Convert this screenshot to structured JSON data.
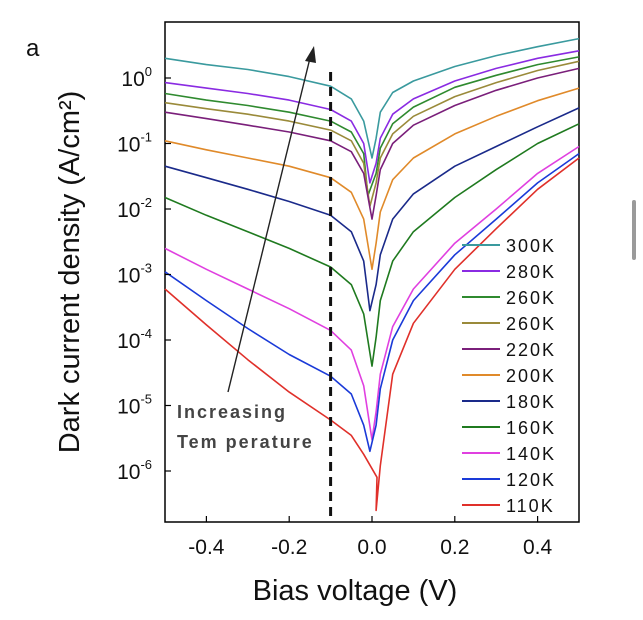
{
  "panel_label": "a",
  "chart_data": {
    "type": "line",
    "xlabel": "Bias voltage (V)",
    "ylabel": "Dark current density (A/cm²)",
    "xlim": [
      -0.5,
      0.5
    ],
    "x_ticks": [
      -0.4,
      -0.2,
      0.0,
      0.2,
      0.4
    ],
    "x_tick_labels": [
      "-0.4",
      "-0.2",
      "0.0",
      "0.2",
      "0.4"
    ],
    "yscale": "log",
    "ylim": [
      1e-07,
      10
    ],
    "y_tick_exponents": [
      0,
      -1,
      -2,
      -3,
      -4,
      -5,
      -6
    ],
    "y_tick_base": "10",
    "x": [
      -0.5,
      -0.4,
      -0.3,
      -0.2,
      -0.1,
      -0.05,
      -0.02,
      0.0,
      0.01,
      0.02,
      0.05,
      0.1,
      0.2,
      0.3,
      0.4,
      0.5
    ],
    "series": [
      {
        "name": "300K",
        "color": "#3a9a9e",
        "min_y": 0.0,
        "values": [
          2.0,
          1.6,
          1.35,
          1.05,
          0.75,
          0.48,
          0.22,
          0.06,
          0.12,
          0.3,
          0.6,
          0.9,
          1.5,
          2.2,
          3.0,
          4.0
        ]
      },
      {
        "name": "280K",
        "color": "#8a2be2",
        "min_y": -0.005,
        "values": [
          0.85,
          0.7,
          0.58,
          0.46,
          0.33,
          0.22,
          0.1,
          0.025,
          0.05,
          0.12,
          0.28,
          0.48,
          0.9,
          1.4,
          2.0,
          2.6
        ]
      },
      {
        "name": "260K",
        "color": "#2f8a2f",
        "min_y": -0.01,
        "values": [
          0.58,
          0.46,
          0.38,
          0.3,
          0.22,
          0.15,
          0.07,
          0.016,
          0.035,
          0.085,
          0.2,
          0.36,
          0.72,
          1.1,
          1.6,
          2.1
        ]
      },
      {
        "name": "260K",
        "color": "#9a8a3a",
        "min_y": -0.005,
        "values": [
          0.42,
          0.34,
          0.28,
          0.22,
          0.16,
          0.11,
          0.05,
          0.011,
          0.025,
          0.06,
          0.14,
          0.26,
          0.52,
          0.85,
          1.3,
          1.8
        ]
      },
      {
        "name": "220K",
        "color": "#7a1f7a",
        "min_y": 0.0,
        "values": [
          0.3,
          0.24,
          0.19,
          0.15,
          0.11,
          0.075,
          0.035,
          0.007,
          0.016,
          0.04,
          0.1,
          0.19,
          0.38,
          0.65,
          1.0,
          1.4
        ]
      },
      {
        "name": "200K",
        "color": "#e08a2a",
        "min_y": 0.0,
        "values": [
          0.11,
          0.08,
          0.06,
          0.045,
          0.03,
          0.018,
          0.007,
          0.0012,
          0.003,
          0.009,
          0.028,
          0.06,
          0.14,
          0.26,
          0.45,
          0.7
        ]
      },
      {
        "name": "180K",
        "color": "#1a2a8a",
        "min_y": -0.005,
        "values": [
          0.045,
          0.03,
          0.02,
          0.013,
          0.008,
          0.0045,
          0.0016,
          0.00028,
          0.0007,
          0.002,
          0.007,
          0.017,
          0.045,
          0.09,
          0.18,
          0.35
        ]
      },
      {
        "name": "160K",
        "color": "#1f7a1f",
        "min_y": 0.0,
        "values": [
          0.015,
          0.008,
          0.0045,
          0.0025,
          0.0013,
          0.0007,
          0.00025,
          4e-05,
          0.00011,
          0.0004,
          0.0016,
          0.0045,
          0.015,
          0.04,
          0.1,
          0.2
        ]
      },
      {
        "name": "140K",
        "color": "#e040e0",
        "min_y": 0.0,
        "values": [
          0.0025,
          0.0012,
          0.0006,
          0.0003,
          0.00014,
          7e-05,
          2e-05,
          3e-06,
          8e-06,
          3e-05,
          0.00016,
          0.0006,
          0.003,
          0.01,
          0.035,
          0.09
        ]
      },
      {
        "name": "120K",
        "color": "#1a3ad8",
        "min_y": -0.005,
        "values": [
          0.0011,
          0.0004,
          0.00015,
          6e-05,
          2.8e-05,
          1.5e-05,
          5e-06,
          2e-06,
          5e-06,
          1.8e-05,
          0.0001,
          0.0004,
          0.002,
          0.007,
          0.025,
          0.07
        ]
      },
      {
        "name": "110K",
        "color": "#e0302a",
        "min_y": 0.012,
        "values": [
          0.0006,
          0.00017,
          5e-05,
          1.6e-05,
          6e-06,
          3.5e-06,
          1.8e-06,
          8e-07,
          2.5e-07,
          1.2e-06,
          3e-05,
          0.00018,
          0.0012,
          0.005,
          0.02,
          0.06
        ]
      }
    ],
    "annotation": {
      "line1": "Increasing",
      "line2": "Tem perature"
    },
    "dashed_line_x": -0.1,
    "grid": false,
    "legend_position": "lower-right"
  }
}
